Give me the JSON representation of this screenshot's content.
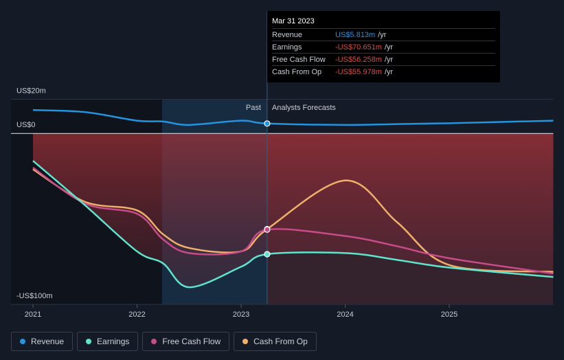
{
  "chart_data": {
    "type": "line",
    "x": [
      2021,
      2021.5,
      2022,
      2022.25,
      2022.5,
      2023,
      2023.25,
      2024,
      2024.5,
      2025,
      2026
    ],
    "series": [
      {
        "name": "Revenue",
        "color": "#2394df",
        "values": [
          13.7,
          12.5,
          7.5,
          7,
          5,
          7.5,
          5.813,
          5,
          5.5,
          6,
          7.5
        ]
      },
      {
        "name": "Earnings",
        "color": "#5ee5cd",
        "values": [
          -16,
          -42,
          -69,
          -76,
          -90,
          -78,
          -70.651,
          -70,
          -74,
          -78.5,
          -84
        ]
      },
      {
        "name": "Free Cash Flow",
        "color": "#c84b8a",
        "values": [
          -20,
          -41,
          -47,
          -62,
          -70,
          -69,
          -56.258,
          -60,
          -66,
          -73,
          -82
        ]
      },
      {
        "name": "Cash From Op",
        "color": "#f0b06a",
        "values": [
          -21,
          -40,
          -45,
          -59,
          -67,
          -69,
          -55.978,
          -27.5,
          -52,
          -77,
          -81
        ]
      }
    ],
    "xlim": [
      2021,
      2026
    ],
    "xticks": [
      2021,
      2022,
      2023,
      2024,
      2025
    ],
    "ylim": [
      -100,
      20
    ],
    "yticks": [
      {
        "value": 20,
        "label": "US$20m"
      },
      {
        "value": 0,
        "label": "US$0"
      },
      {
        "value": -100,
        "label": "-US$100m"
      }
    ],
    "past_label": "Past",
    "forecast_label": "Analysts Forecasts",
    "tooltip": {
      "date": "Mar 31 2023",
      "rows": [
        {
          "label": "Revenue",
          "value": "US$5.813m",
          "unit": "/yr"
        },
        {
          "label": "Earnings",
          "value": "-US$70.651m",
          "unit": "/yr"
        },
        {
          "label": "Free Cash Flow",
          "value": "-US$56.258m",
          "unit": "/yr"
        },
        {
          "label": "Cash From Op",
          "value": "-US$55.978m",
          "unit": "/yr"
        }
      ]
    }
  }
}
